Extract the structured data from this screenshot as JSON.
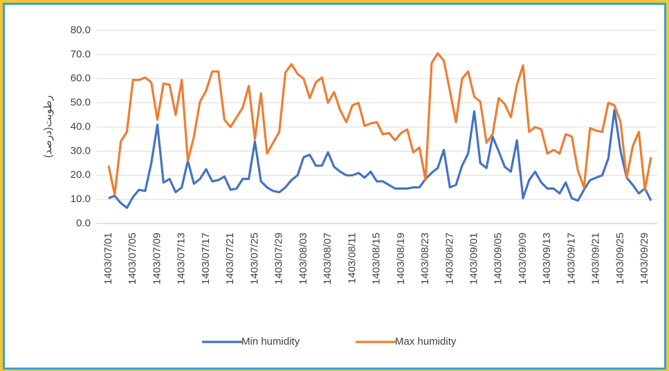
{
  "chart_data": {
    "type": "line",
    "y_label": "رطوبت(درصد)",
    "categories": [
      "1403/07/01",
      null,
      null,
      null,
      "1403/07/05",
      null,
      null,
      null,
      "1403/07/09",
      null,
      null,
      null,
      "1403/07/13",
      null,
      null,
      null,
      "1403/07/17",
      null,
      null,
      null,
      "1403/07/21",
      null,
      null,
      null,
      "1403/07/25",
      null,
      null,
      null,
      "1403/07/29",
      null,
      null,
      null,
      "1403/08/03",
      null,
      null,
      null,
      "1403/08/07",
      null,
      null,
      null,
      "1403/08/11",
      null,
      null,
      null,
      "1403/08/15",
      null,
      null,
      null,
      "1403/08/19",
      null,
      null,
      null,
      "1403/08/23",
      null,
      null,
      null,
      "1403/08/27",
      null,
      null,
      null,
      "1403/09/01",
      null,
      null,
      null,
      "1403/09/05",
      null,
      null,
      null,
      "1403/09/09",
      null,
      null,
      null,
      "1403/09/13",
      null,
      null,
      null,
      "1403/09/17",
      null,
      null,
      null,
      "1403/09/21",
      null,
      null,
      null,
      "1403/09/25",
      null,
      null,
      null,
      "1403/09/29",
      null
    ],
    "series": [
      {
        "name": "Min humidity",
        "color": "#4472c4",
        "values": [
          10.5,
          11.5,
          8.5,
          6.5,
          11,
          14,
          13.5,
          25,
          41,
          17,
          18.5,
          13,
          15,
          26,
          16.5,
          18.5,
          22.5,
          17.5,
          18,
          19.5,
          14,
          14.5,
          18.5,
          18.5,
          34,
          17.5,
          15,
          13.5,
          13,
          15,
          18,
          20,
          27.5,
          28.5,
          24,
          24,
          29.5,
          23.5,
          21.5,
          20,
          20,
          21,
          19,
          21.5,
          17.5,
          17.5,
          16,
          14.5,
          14.5,
          14.5,
          15,
          15,
          18.5,
          21,
          23,
          30.5,
          15,
          16,
          24,
          29,
          46.5,
          25,
          23,
          36,
          30,
          23.5,
          21.5,
          34.5,
          10.5,
          18,
          21.5,
          17,
          14.5,
          14.5,
          12.5,
          17,
          10.5,
          9.5,
          14,
          18,
          19,
          20,
          27,
          47,
          30,
          19,
          16,
          12.5,
          14.5,
          9.5
        ]
      },
      {
        "name": "Max humidity",
        "color": "#ed7d31",
        "values": [
          24,
          12,
          34,
          38,
          59.5,
          59.5,
          60.5,
          58.5,
          43,
          58,
          57.5,
          45,
          59.5,
          26,
          36,
          50.5,
          55,
          63,
          63,
          43,
          40,
          44,
          48,
          57,
          35,
          54,
          29,
          33.5,
          38,
          62.5,
          66,
          62,
          60,
          52,
          58.5,
          60.5,
          50,
          54.5,
          47,
          42,
          49,
          50,
          40.5,
          41.5,
          42,
          37,
          37.5,
          34.5,
          37.5,
          39,
          29.5,
          31.5,
          18,
          66.5,
          70.5,
          67.5,
          55,
          42,
          60,
          63,
          52.5,
          50.5,
          33.5,
          37,
          52,
          49.5,
          44,
          57.5,
          65.5,
          38,
          40,
          39,
          29,
          30.5,
          29,
          37,
          36,
          22,
          15,
          39.5,
          38.5,
          38,
          50,
          49,
          42,
          19,
          32,
          38,
          14,
          27.5
        ]
      }
    ],
    "ylim": [
      0,
      80
    ],
    "yticks": [
      {
        "value": 0,
        "label": "0.0"
      },
      {
        "value": 10,
        "label": "10.0"
      },
      {
        "value": 20,
        "label": "20.0"
      },
      {
        "value": 30,
        "label": "30.0"
      },
      {
        "value": 40,
        "label": "40.0"
      },
      {
        "value": 50,
        "label": "50.0"
      },
      {
        "value": 60,
        "label": "60.0"
      },
      {
        "value": 70,
        "label": "70.0"
      },
      {
        "value": 80,
        "label": "80.0"
      }
    ],
    "grid": true,
    "legend": "bottom"
  }
}
